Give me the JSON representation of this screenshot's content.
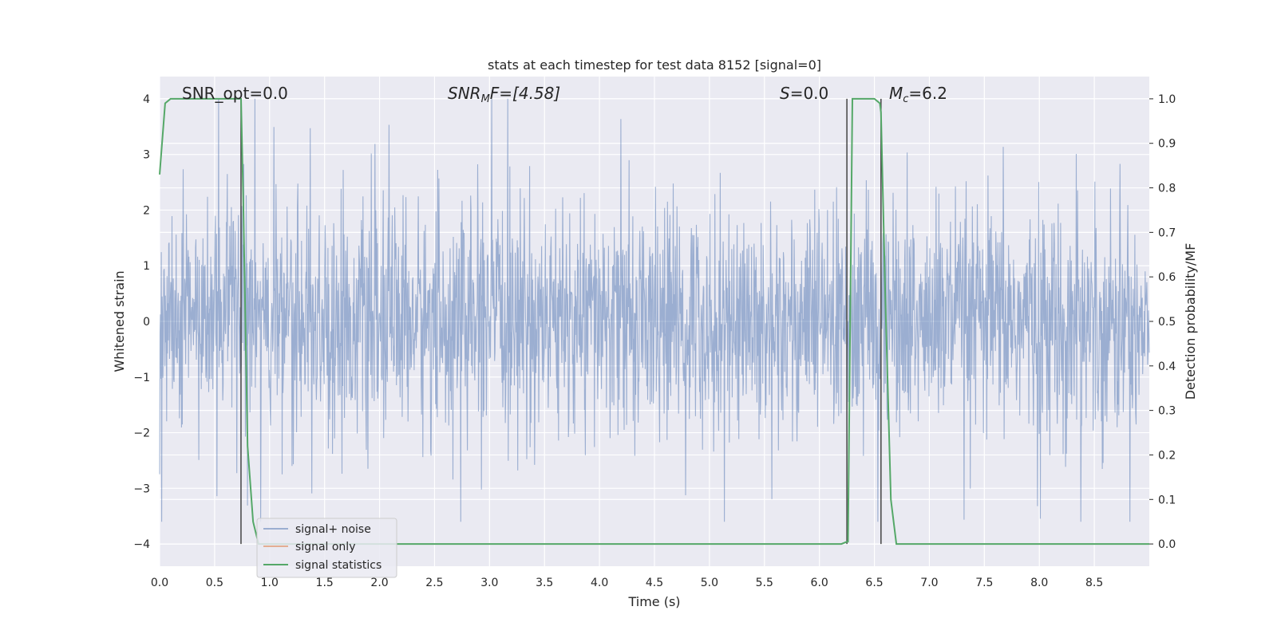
{
  "chart_data": {
    "type": "line",
    "title": "stats at each timestep for test data 8152 [signal=0]",
    "xlabel": "Time (s)",
    "ylabel_left": "Whitened strain",
    "ylabel_right": "Detection probability/MF",
    "xlim": [
      0,
      9
    ],
    "ylim_left": [
      -4.4,
      4.4
    ],
    "ylim_right": [
      -0.05,
      1.05
    ],
    "x_ticks": [
      "0.0",
      "0.5",
      "1.0",
      "1.5",
      "2.0",
      "2.5",
      "3.0",
      "3.5",
      "4.0",
      "4.5",
      "5.0",
      "5.5",
      "6.0",
      "6.5",
      "7.0",
      "7.5",
      "8.0",
      "8.5"
    ],
    "y_ticks_left": [
      {
        "value": 4,
        "label": "4"
      },
      {
        "value": 3,
        "label": "3"
      },
      {
        "value": 2,
        "label": "2"
      },
      {
        "value": 1,
        "label": "1"
      },
      {
        "value": 0,
        "label": "0"
      },
      {
        "value": -1,
        "label": "−1"
      },
      {
        "value": -2,
        "label": "−2"
      },
      {
        "value": -3,
        "label": "−3"
      },
      {
        "value": -4,
        "label": "−4"
      }
    ],
    "y_ticks_right": [
      "1.0",
      "0.9",
      "0.8",
      "0.7",
      "0.6",
      "0.5",
      "0.4",
      "0.3",
      "0.2",
      "0.1",
      "0.0"
    ],
    "grid": true,
    "legend_placement": "lower-left",
    "annotations": {
      "snr_opt": "SNR_opt=0.0",
      "snr_mf_main": "SNR",
      "snr_mf_sub": "M",
      "snr_mf_rest": "F=[4.58]",
      "s_main": "S",
      "s_rest": "=0.0",
      "mc_main": "M",
      "mc_sub": "c",
      "mc_rest": "=6.2"
    },
    "series": [
      {
        "name": "signal+ noise",
        "color": "#4c72b0",
        "axis": "left",
        "description_kind": "noise",
        "envelope_typical": 1.6,
        "envelope_peak": 4.0
      },
      {
        "name": "signal only",
        "color": "#dd8452",
        "axis": "left",
        "values": []
      },
      {
        "name": "signal statistics",
        "color": "#55a868",
        "axis": "right",
        "x": [
          0.0,
          0.05,
          0.1,
          0.15,
          0.2,
          0.3,
          0.4,
          0.5,
          0.6,
          0.7,
          0.74,
          0.76,
          0.8,
          0.85,
          0.9,
          1.0,
          2.0,
          3.0,
          4.0,
          5.0,
          6.0,
          6.2,
          6.25,
          6.26,
          6.3,
          6.35,
          6.4,
          6.5,
          6.55,
          6.56,
          6.6,
          6.65,
          6.7,
          7.0,
          8.0,
          9.0
        ],
        "y": [
          0.83,
          0.99,
          1.0,
          1.0,
          1.0,
          1.0,
          1.0,
          1.0,
          1.0,
          1.0,
          1.0,
          0.78,
          0.22,
          0.05,
          0.0,
          0.0,
          0.0,
          0.0,
          0.0,
          0.0,
          0.0,
          0.0,
          0.005,
          0.005,
          1.0,
          1.0,
          1.0,
          1.0,
          0.99,
          0.97,
          0.55,
          0.1,
          0.0,
          0.0,
          0.0,
          0.0
        ]
      }
    ],
    "vertical_markers": [
      0.74,
      6.25,
      6.56
    ],
    "vertical_marker_color": "#444444"
  },
  "legend": {
    "items": [
      {
        "label": "signal+ noise",
        "color": "#4c72b0"
      },
      {
        "label": "signal only",
        "color": "#dd8452"
      },
      {
        "label": "signal statistics",
        "color": "#55a868"
      }
    ]
  },
  "colors": {
    "plot_bg": "#eaeaf2",
    "grid": "#ffffff",
    "noise": "#4c72b0",
    "signal_only": "#dd8452",
    "statistics": "#55a868"
  }
}
